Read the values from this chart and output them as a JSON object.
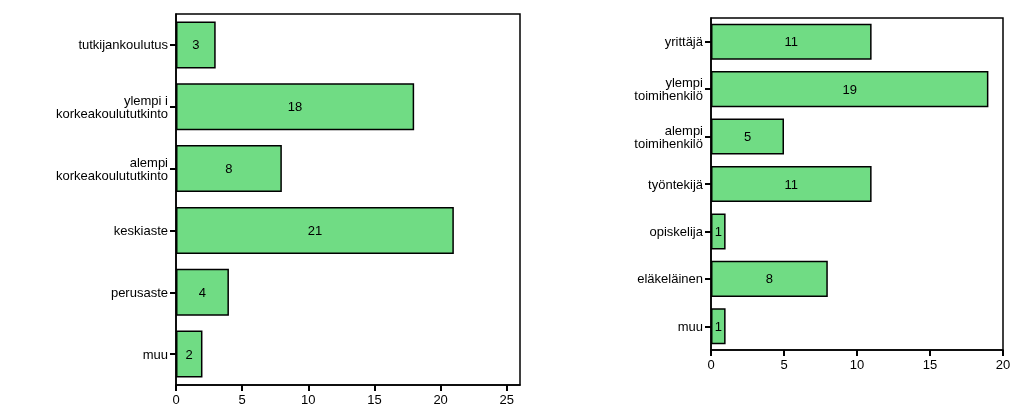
{
  "chart_data": [
    {
      "type": "bar",
      "orientation": "horizontal",
      "categories": [
        "tutkijankoulutus",
        "ylempi i\nkorkeakoulututkinto",
        "alempi\nkorkeakoulututkinto",
        "keskiaste",
        "perusaste",
        "muu"
      ],
      "values": [
        3,
        18,
        8,
        21,
        4,
        2
      ],
      "color": "#70dc84",
      "xlim": [
        0,
        26
      ],
      "xticks": [
        0,
        5,
        10,
        15,
        20,
        25
      ],
      "data_labels": true
    },
    {
      "type": "bar",
      "orientation": "horizontal",
      "categories": [
        "yrittäjä",
        "ylempi\ntoimihenkilö",
        "alempi\ntoimihenkilö",
        "työntekijä",
        "opiskelija",
        "eläkeläinen",
        "muu"
      ],
      "values": [
        11,
        19,
        5,
        11,
        1,
        8,
        1
      ],
      "color": "#70dc84",
      "xlim": [
        0,
        20
      ],
      "xticks": [
        0,
        5,
        10,
        15,
        20
      ],
      "data_labels": true
    }
  ]
}
